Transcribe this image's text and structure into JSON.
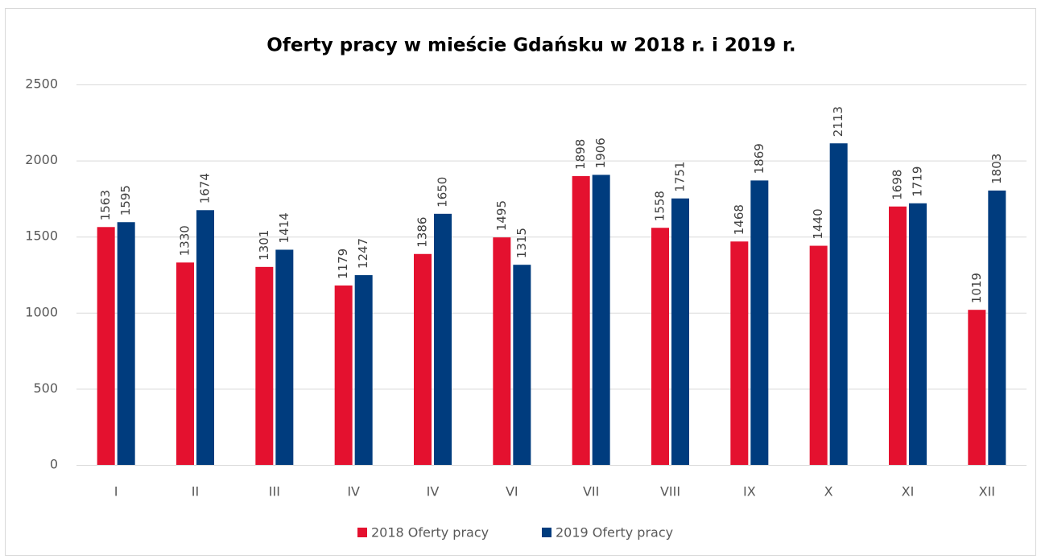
{
  "chart_data": {
    "type": "bar",
    "title": "Oferty pracy w mieście Gdańsku w 2018 r. i 2019 r.",
    "categories": [
      "I",
      "II",
      "III",
      "IV",
      "IV",
      "VI",
      "VII",
      "VIII",
      "IX",
      "X",
      "XI",
      "XII"
    ],
    "series": [
      {
        "name": "2018 Oferty pracy",
        "color": "#e4112f",
        "values": [
          1563,
          1330,
          1301,
          1179,
          1386,
          1495,
          1898,
          1558,
          1468,
          1440,
          1698,
          1019
        ]
      },
      {
        "name": "2019 Oferty pracy",
        "color": "#003c7e",
        "values": [
          1595,
          1674,
          1414,
          1247,
          1650,
          1315,
          1906,
          1751,
          1869,
          2113,
          1719,
          1803
        ]
      }
    ],
    "ylim": [
      0,
      2500
    ],
    "yticks": [
      0,
      500,
      1000,
      1500,
      2000,
      2500
    ],
    "grid": true,
    "legend": "bottom"
  }
}
